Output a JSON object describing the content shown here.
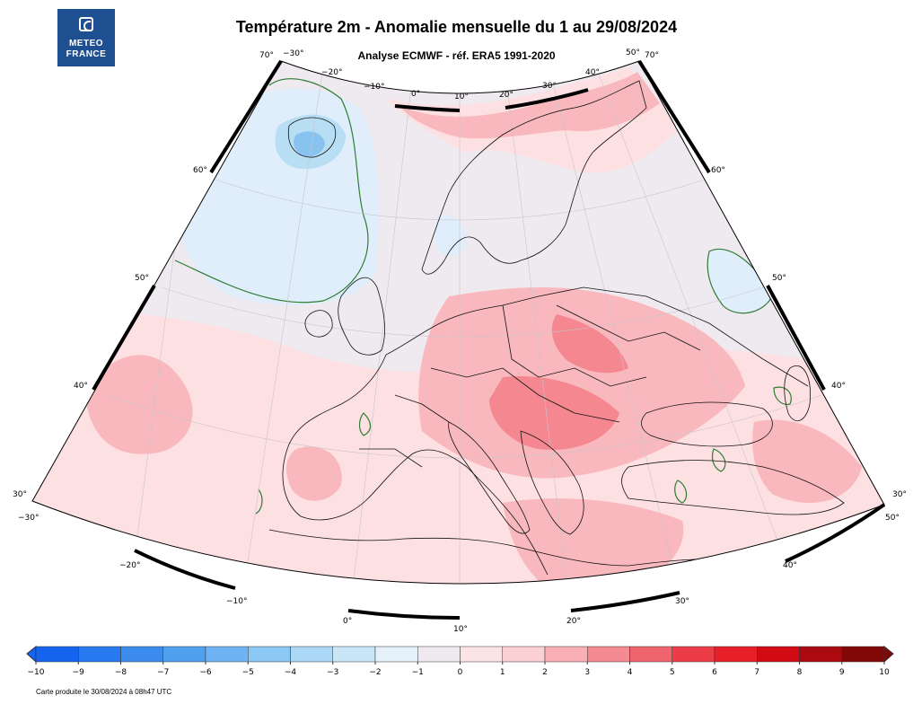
{
  "header": {
    "title": "Température 2m - Anomalie mensuelle du 1 au 29/08/2024",
    "subtitle": "Analyse ECMWF - réf. ERA5 1991-2020"
  },
  "logo": {
    "line1": "METEO",
    "line2": "FRANCE"
  },
  "map": {
    "lon_labels_top": [
      "−30°",
      "−20°",
      "−10°",
      "0°",
      "10°",
      "20°",
      "30°",
      "40°",
      "50°"
    ],
    "lon_labels_bottom": [
      "−30°",
      "−20°",
      "−10°",
      "0°",
      "10°",
      "20°",
      "30°",
      "40°",
      "50°"
    ],
    "lat_labels_left": [
      "70°",
      "60°",
      "50°",
      "40°",
      "30°"
    ],
    "lat_labels_right": [
      "70°",
      "60°",
      "50°",
      "40°",
      "30°"
    ],
    "colors": {
      "neutral": "#efeaf0",
      "warm1": "#fde0e2",
      "warm2": "#f9b8bd",
      "warm3": "#f4878f",
      "cool1": "#dfeefa",
      "cool2": "#b8def4",
      "cool3": "#87c3ee",
      "zero_contour": "#2f7d32",
      "coast": "#000000"
    }
  },
  "colorbar": {
    "labels": [
      "−10",
      "−9",
      "−8",
      "−7",
      "−6",
      "−5",
      "−4",
      "−3",
      "−2",
      "−1",
      "0",
      "1",
      "2",
      "3",
      "4",
      "5",
      "6",
      "7",
      "8",
      "9",
      "10"
    ],
    "colors": [
      "#1464f0",
      "#2878f0",
      "#3c8cf0",
      "#50a0f0",
      "#6eb4f4",
      "#8cc8f4",
      "#aad8f6",
      "#c8e6f8",
      "#e4f0fa",
      "#efeaf0",
      "#fbe4e6",
      "#fbd0d4",
      "#f8b0b6",
      "#f48a92",
      "#f0646e",
      "#ec3c48",
      "#e81e28",
      "#d20a14",
      "#aa0a10",
      "#820808"
    ]
  },
  "footer": {
    "text": "Carte produite le 30/08/2024 à 08h47 UTC"
  }
}
